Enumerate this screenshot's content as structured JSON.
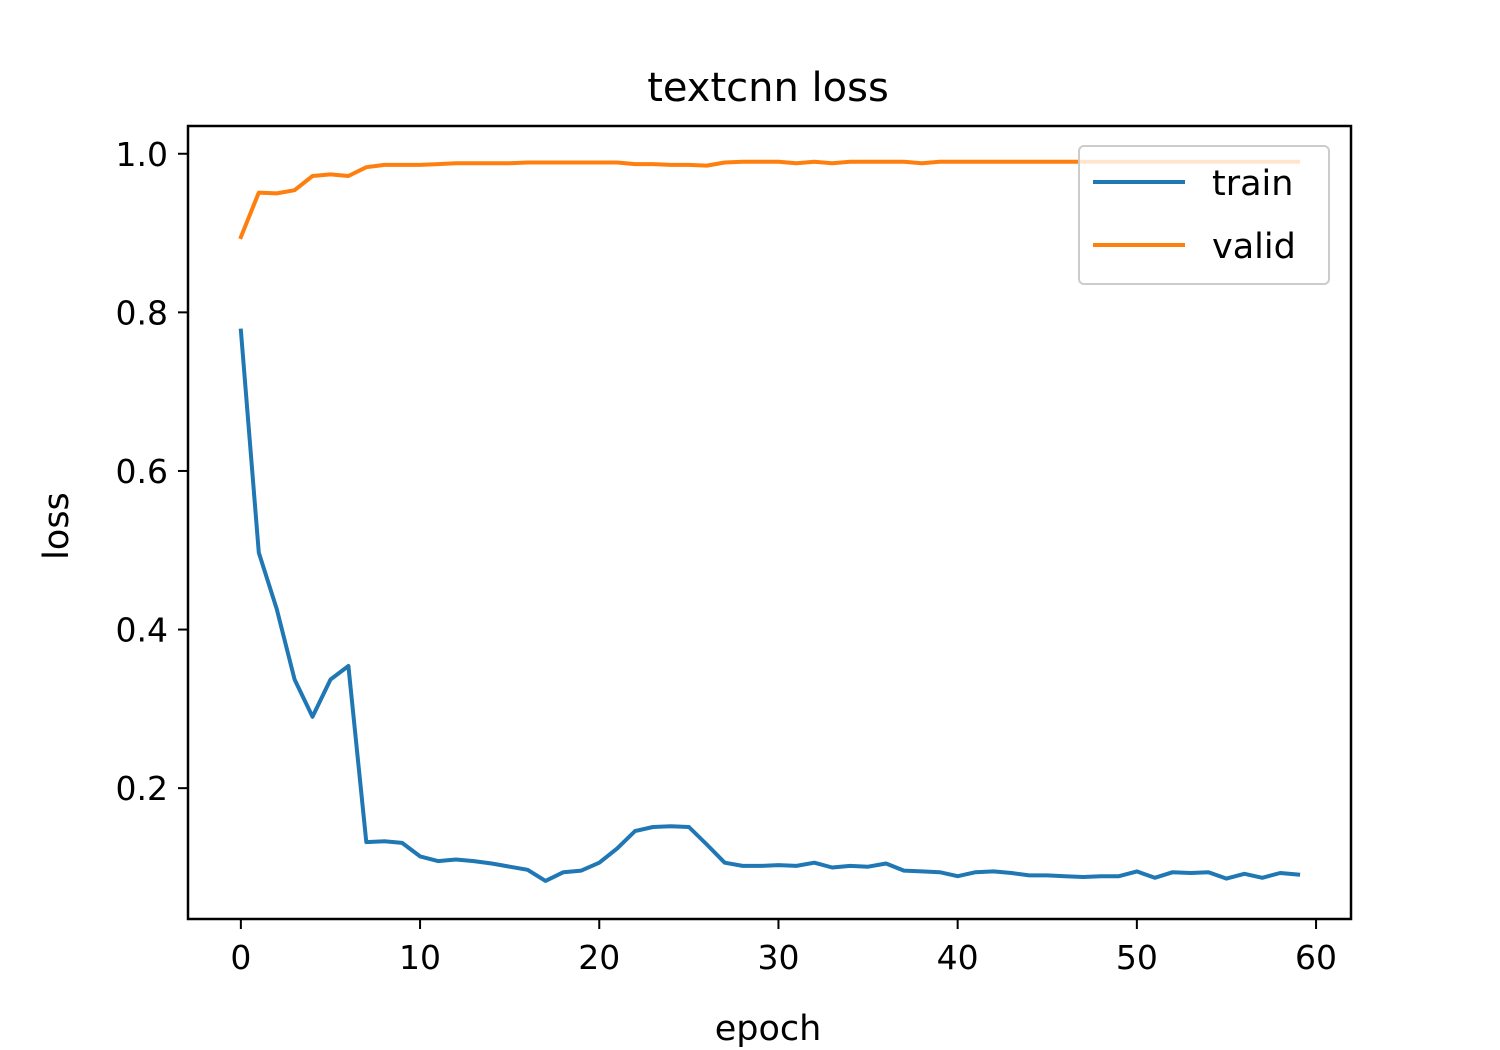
{
  "chart_data": {
    "type": "line",
    "title": "textcnn loss",
    "xlabel": "epoch",
    "ylabel": "loss",
    "xlim": [
      -2.95,
      61.95
    ],
    "ylim": [
      0.035,
      1.035
    ],
    "xticks": [
      0,
      10,
      20,
      30,
      40,
      50,
      60
    ],
    "yticks": [
      0.2,
      0.4,
      0.6,
      0.8,
      1.0
    ],
    "xtick_labels": [
      "0",
      "10",
      "20",
      "30",
      "40",
      "50",
      "60"
    ],
    "ytick_labels": [
      "0.2",
      "0.4",
      "0.6",
      "0.8",
      "1.0"
    ],
    "grid": false,
    "legend_position": "upper right",
    "x": [
      0,
      1,
      2,
      3,
      4,
      5,
      6,
      7,
      8,
      9,
      10,
      11,
      12,
      13,
      14,
      15,
      16,
      17,
      18,
      19,
      20,
      21,
      22,
      23,
      24,
      25,
      26,
      27,
      28,
      29,
      30,
      31,
      32,
      33,
      34,
      35,
      36,
      37,
      38,
      39,
      40,
      41,
      42,
      43,
      44,
      45,
      46,
      47,
      48,
      49,
      50,
      51,
      52,
      53,
      54,
      55,
      56,
      57,
      58,
      59
    ],
    "series": [
      {
        "name": "train",
        "color": "#1f77b4",
        "values": [
          0.777,
          0.497,
          0.426,
          0.337,
          0.29,
          0.337,
          0.354,
          0.132,
          0.133,
          0.131,
          0.114,
          0.108,
          0.11,
          0.108,
          0.105,
          0.101,
          0.097,
          0.083,
          0.094,
          0.096,
          0.106,
          0.124,
          0.146,
          0.151,
          0.152,
          0.151,
          0.129,
          0.106,
          0.102,
          0.102,
          0.103,
          0.102,
          0.106,
          0.1,
          0.102,
          0.101,
          0.105,
          0.096,
          0.095,
          0.094,
          0.089,
          0.094,
          0.095,
          0.093,
          0.09,
          0.09,
          0.089,
          0.088,
          0.089,
          0.089,
          0.095,
          0.087,
          0.094,
          0.093,
          0.094,
          0.086,
          0.092,
          0.087,
          0.093,
          0.091
        ]
      },
      {
        "name": "valid",
        "color": "#ff7f0e",
        "values": [
          0.895,
          0.951,
          0.95,
          0.954,
          0.972,
          0.974,
          0.972,
          0.983,
          0.986,
          0.986,
          0.986,
          0.987,
          0.988,
          0.988,
          0.988,
          0.988,
          0.989,
          0.989,
          0.989,
          0.989,
          0.989,
          0.989,
          0.987,
          0.987,
          0.986,
          0.986,
          0.985,
          0.989,
          0.99,
          0.99,
          0.99,
          0.988,
          0.99,
          0.988,
          0.99,
          0.99,
          0.99,
          0.99,
          0.988,
          0.99,
          0.99,
          0.99,
          0.99,
          0.99,
          0.99,
          0.99,
          0.99,
          0.99,
          0.99,
          0.99,
          0.99,
          0.99,
          0.99,
          0.99,
          0.99,
          0.99,
          0.99,
          0.99,
          0.99,
          0.99
        ]
      }
    ]
  }
}
